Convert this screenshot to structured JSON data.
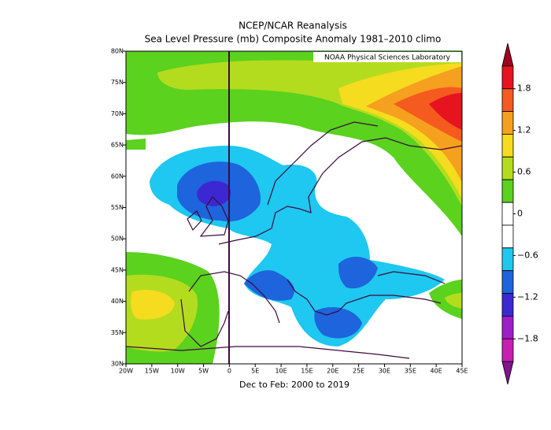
{
  "chart_data": {
    "type": "map",
    "title": "NCEP/NCAR Reanalysis",
    "subtitle": "Sea Level Pressure (mb) Composite Anomaly 1981–2010 climo",
    "credit": "NOAA Physical Sciences Laboratory",
    "caption": "Dec to Feb: 2000 to 2019",
    "lon_labels": [
      "20W",
      "15W",
      "10W",
      "5W",
      "0",
      "5E",
      "10E",
      "15E",
      "20E",
      "25E",
      "30E",
      "35E",
      "40E",
      "45E"
    ],
    "lat_labels": [
      "30N",
      "35N",
      "40N",
      "45N",
      "50N",
      "55N",
      "60N",
      "65N",
      "70N",
      "75N",
      "80N"
    ],
    "colorbar": {
      "ticks": [
        {
          "value": 1.8,
          "label": "1.8"
        },
        {
          "value": 1.2,
          "label": "1.2"
        },
        {
          "value": 0.6,
          "label": "0.6"
        },
        0,
        {
          "value": -0.6,
          "label": "−0.6"
        },
        {
          "value": -1.2,
          "label": "−1.2"
        },
        {
          "value": -1.8,
          "label": "−1.8"
        }
      ],
      "colors": [
        "#a0001e",
        "#e6141e",
        "#f55a1e",
        "#f5a01e",
        "#f5dc1e",
        "#b4dc1e",
        "#5ad21e",
        "#ffffff",
        "#ffffff",
        "#1ec8f0",
        "#1e64dc",
        "#3c28d2",
        "#a01ec8",
        "#c81eb4",
        "#82148c"
      ]
    }
  }
}
